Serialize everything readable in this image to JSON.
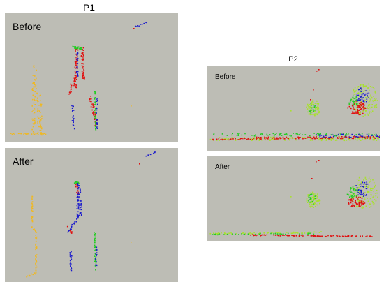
{
  "p1": {
    "title": "P1",
    "before_label": "Before",
    "after_label": "After"
  },
  "p2": {
    "title": "P2",
    "before_label": "Before",
    "after_label": "After"
  },
  "colors": {
    "panel_background": "#bdbdb5",
    "yellow": "#f0b820",
    "red": "#e01010",
    "green": "#22cc22",
    "blue": "#1a1acc",
    "light_green": "#a8e030"
  }
}
